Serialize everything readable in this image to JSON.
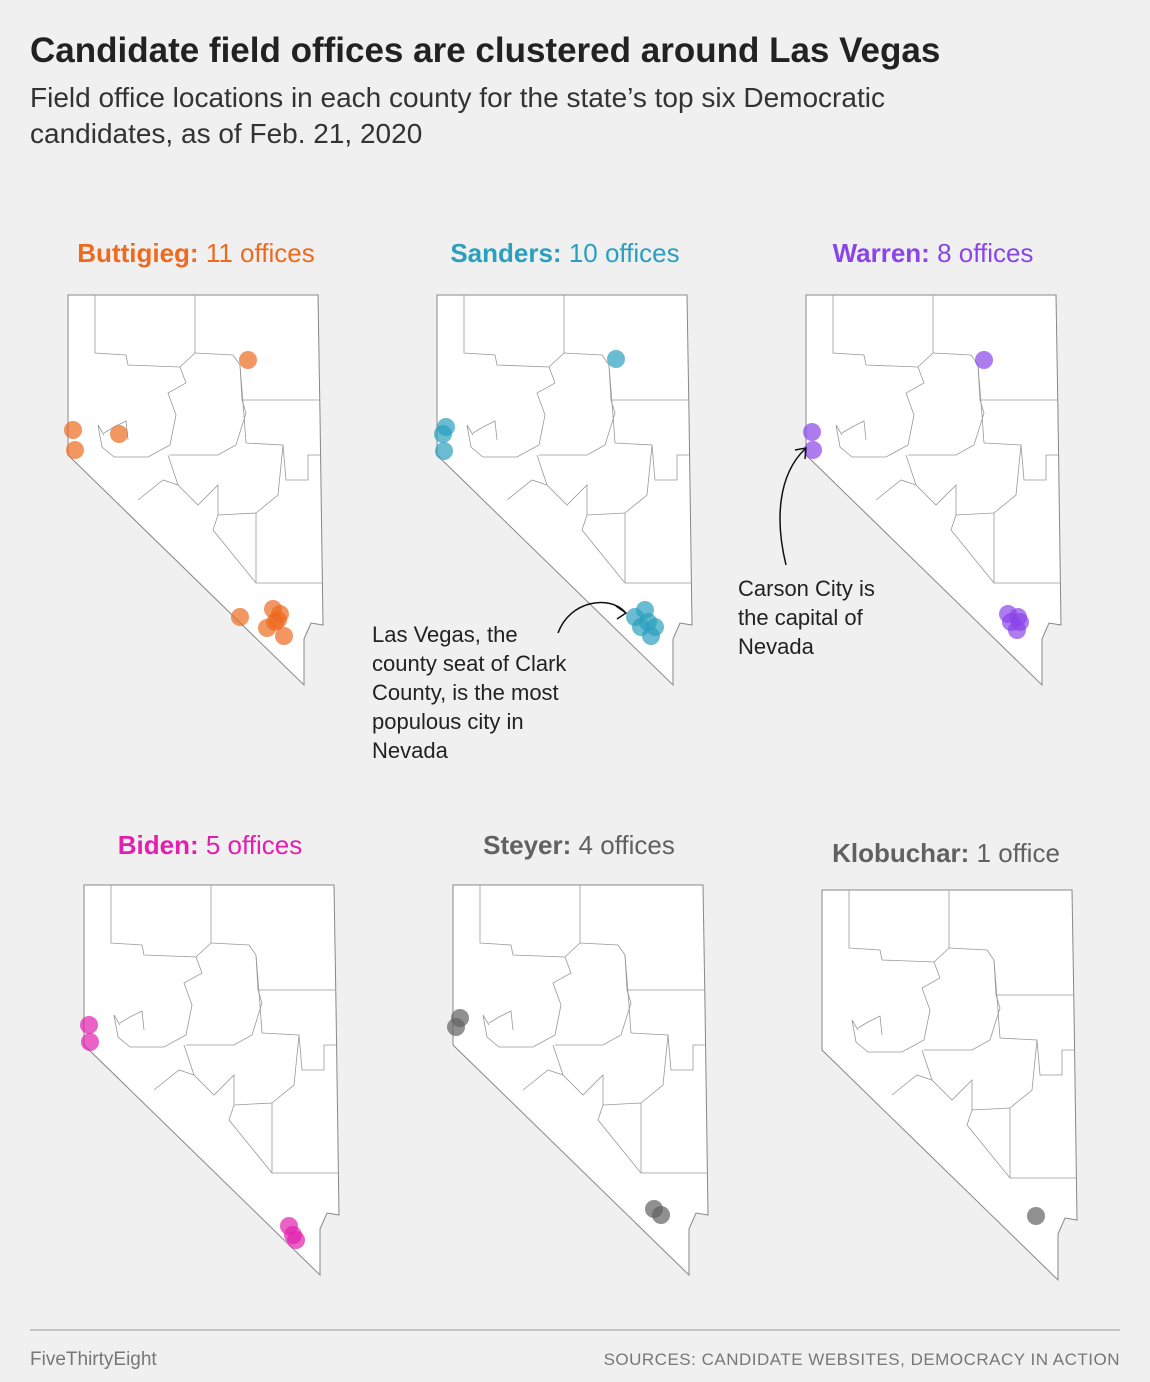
{
  "header": {
    "title": "Candidate field offices are clustered around Las Vegas",
    "subtitle": [
      "Field office locations in each county for the state’s top six Democratic",
      "candidates, as of Feb. 21, 2020"
    ]
  },
  "panels": [
    {
      "name": "Buttigieg:",
      "count": "11 offices",
      "color": "#ed6a1f"
    },
    {
      "name": "Sanders:",
      "count": "10 offices",
      "color": "#2a9fbe"
    },
    {
      "name": "Warren:",
      "count": "8 offices",
      "color": "#8a45e8"
    },
    {
      "name": "Biden:",
      "count": "5 offices",
      "color": "#e21fae"
    },
    {
      "name": "Steyer:",
      "count": "4 offices",
      "color": "#616161"
    },
    {
      "name": "Klobuchar:",
      "count": "1 office",
      "color": "#616161"
    }
  ],
  "annotations": [
    {
      "lines": [
        "Las Vegas, the",
        "county seat of Clark",
        "County, is the most",
        "populous city in",
        "Nevada"
      ]
    },
    {
      "lines": [
        "Carson City is",
        "the capital of",
        "Nevada"
      ]
    }
  ],
  "footer": {
    "brand": "FiveThirtyEight",
    "sources": "SOURCES: CANDIDATE WEBSITES, DEMOCRACY IN ACTION"
  }
}
